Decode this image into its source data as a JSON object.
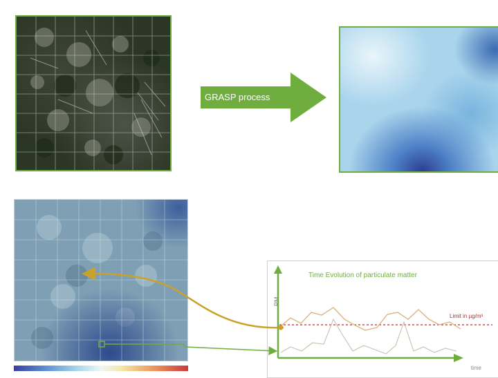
{
  "process": {
    "label": "GRASP process"
  },
  "chart": {
    "title": "Time Evolution of particulate matter",
    "ylabel": "PM",
    "xlabel": "time",
    "limit_label": "Limit in µg/m³"
  },
  "colors": {
    "accent_green": "#6fae3e",
    "arrow_gold": "#c9a227",
    "limit_red": "#b03030",
    "series_tan": "#d9b27a"
  },
  "icons": {
    "process_arrow": "right-arrow",
    "link_arrow_gold": "curved-arrow",
    "link_arrow_green": "elbow-arrow"
  }
}
